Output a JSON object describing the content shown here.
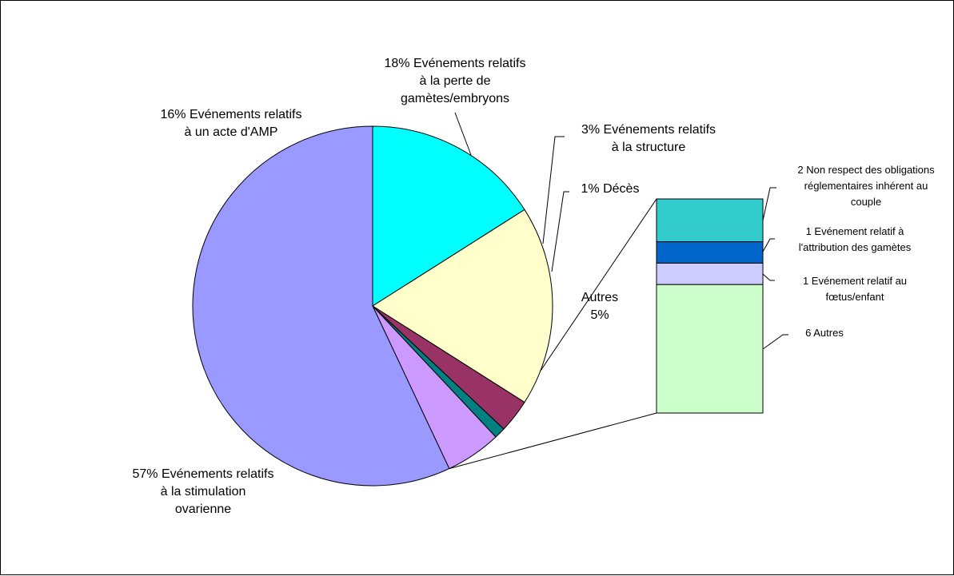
{
  "chart_data": {
    "type": "pie",
    "subtype": "bar-of-pie",
    "title": "",
    "start_angle_deg": 0,
    "direction": "clockwise",
    "slices": [
      {
        "label": "Evénements relatifs à un acte d'AMP",
        "value": 16,
        "value_label": "16%",
        "color": "#00FFFF",
        "label_lines": [
          "16% Evénements relatifs",
          "à un acte d'AMP"
        ]
      },
      {
        "label": "Evénements relatifs à la perte de gamètes/embryons",
        "value": 18,
        "value_label": "18%",
        "color": "#FFFFCC",
        "label_lines": [
          "18% Evénements relatifs",
          "à la perte de",
          "gamètes/embryons"
        ]
      },
      {
        "label": "Evénements relatifs à la structure",
        "value": 3,
        "value_label": "3%",
        "color": "#993366",
        "label_lines": [
          "3% Evénements relatifs",
          "à la structure"
        ]
      },
      {
        "label": "Décès",
        "value": 1,
        "value_label": "1%",
        "color": "#008080",
        "label_lines": [
          "1% Décès"
        ]
      },
      {
        "label": "Autres",
        "value": 5,
        "value_label": "5%",
        "color": "#CC99FF",
        "label_lines": [
          "Autres",
          "5%"
        ]
      },
      {
        "label": "Evénements relatifs à la stimulation ovarienne",
        "value": 57,
        "value_label": "57%",
        "color": "#9999FF",
        "label_lines": [
          "57% Evénements relatifs",
          "à la stimulation",
          "ovarienne"
        ]
      }
    ],
    "breakdown": {
      "of": "Autres",
      "segments": [
        {
          "count": 2,
          "label": "Non respect des obligations réglementaires inhérent au couple",
          "color": "#33CCCC",
          "label_lines": [
            "2 Non respect des obligations",
            "réglementaires inhérent au",
            "couple"
          ]
        },
        {
          "count": 1,
          "label": "Evénement relatif à l'attribution des gamètes",
          "color": "#0066CC",
          "label_lines": [
            "1 Evénement relatif à",
            "l'attribution des gamètes"
          ]
        },
        {
          "count": 1,
          "label": "Evénement relatif au fœtus/enfant",
          "color": "#CCCCFF",
          "label_lines": [
            "1 Evénement relatif au",
            "fœtus/enfant"
          ]
        },
        {
          "count": 6,
          "label": "Autres",
          "color": "#CCFFCC",
          "label_lines": [
            "6 Autres"
          ]
        }
      ]
    },
    "legend": "none"
  }
}
